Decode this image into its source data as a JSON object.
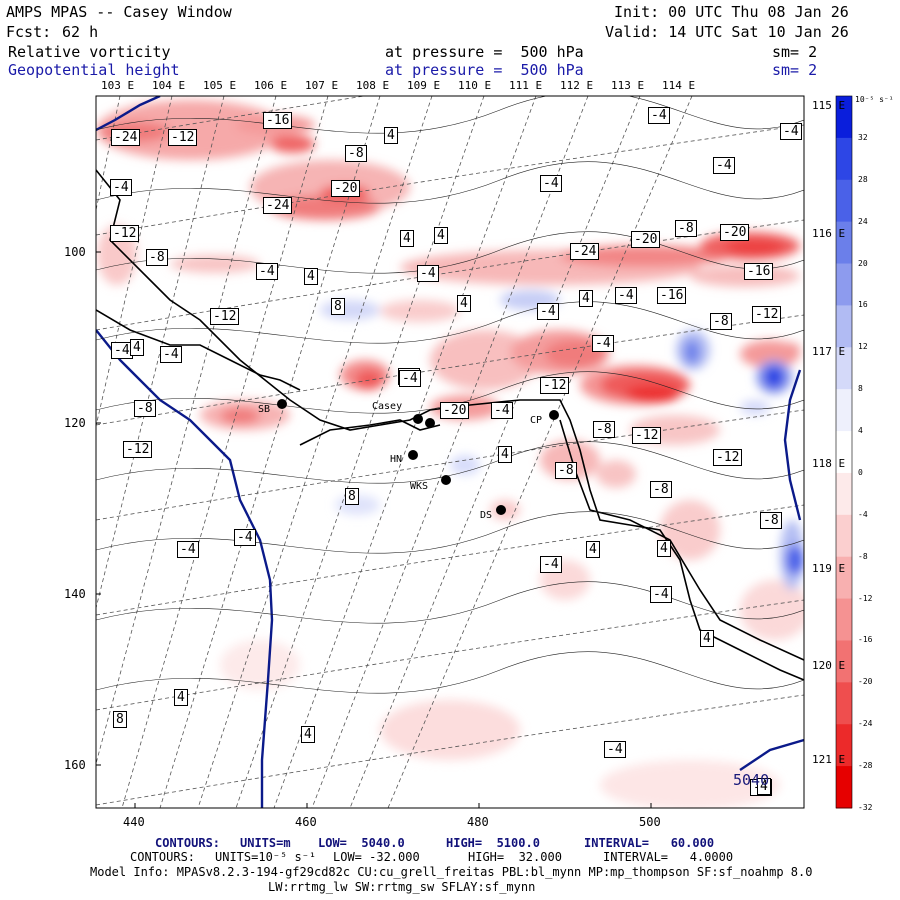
{
  "header": {
    "model_title": "AMPS MPAS -- Casey Window",
    "init": "Init: 00 UTC Thu 08 Jan 26",
    "fcst_label": "Fcst:",
    "fcst_value": "62 h",
    "valid": "Valid: 14 UTC Sat 10 Jan 26",
    "field1_name": "Relative vorticity",
    "field1_level": "at pressure =  500 hPa",
    "field1_sm": "sm= 2",
    "field2_name": "Geopotential height",
    "field2_level": "at pressure =  500 hPa",
    "field2_sm": "sm= 2"
  },
  "longitudes_top": [
    "103 E",
    "104 E",
    "105 E",
    "106 E",
    "107 E",
    "108 E",
    "109 E",
    "110 E",
    "111 E",
    "112 E",
    "113 E",
    "114 E"
  ],
  "longitudes_right": [
    "115 E",
    "116 E",
    "117 E",
    "118 E",
    "119 E",
    "120 E",
    "121 E"
  ],
  "y_ticks": [
    "100",
    "120",
    "140",
    "160"
  ],
  "x_ticks": [
    "440",
    "460",
    "480",
    "500"
  ],
  "colorbar": {
    "units": "10⁻⁵ s⁻¹",
    "ticks": [
      "32",
      "28",
      "24",
      "20",
      "16",
      "12",
      "8",
      "4",
      "0",
      "-4",
      "-8",
      "-12",
      "-16",
      "-20",
      "-24",
      "-28",
      "-32"
    ],
    "colors": [
      "#0a1edc",
      "#2d46e6",
      "#4a61e8",
      "#6b7fea",
      "#8d9bee",
      "#b1bbf3",
      "#d4d9f9",
      "#eef0fc",
      "#ffffff",
      "#fdeaea",
      "#fbcfcf",
      "#f8b0b0",
      "#f59292",
      "#f27272",
      "#ef4e4e",
      "#ec2a2a",
      "#e60000"
    ]
  },
  "stations": [
    "SB",
    "Casey",
    "HN",
    "WKS",
    "DS",
    "CP"
  ],
  "contour_labels": [
    "-24",
    "-12",
    "-16",
    "4",
    "-8",
    "-20",
    "-24",
    "-4",
    "-12",
    "-8",
    "-4",
    "4",
    "-4",
    "8",
    "-12",
    "-4",
    "4",
    "-4",
    "-8",
    "-12",
    "-4",
    "-4",
    "4",
    "-12",
    "-8",
    "-20",
    "-4",
    "-8",
    "-12",
    "4",
    "-12",
    "-8",
    "-8",
    "4",
    "-4",
    "8",
    "-4",
    "-4",
    "4",
    "8",
    "4",
    "-4",
    "-8",
    "-4",
    "4",
    "4",
    "-4",
    "-24",
    "-20",
    "-8",
    "-20",
    "-16",
    "-16",
    "-4",
    "-8",
    "4",
    "-4",
    "-12",
    "-4",
    "-4",
    "-4",
    "-4",
    "4",
    "4",
    "4"
  ],
  "height_label": "5040",
  "footer": {
    "line1_contours": "CONTOURS:",
    "line1_units": "UNITS=m",
    "line1_low": "LOW=  5040.0",
    "line1_high": "HIGH=  5100.0",
    "line1_interval": "INTERVAL=   60.000",
    "line2_contours": "CONTOURS:",
    "line2_units": "UNITS=10⁻⁵ s⁻¹",
    "line2_low": "LOW= -32.000",
    "line2_high": "HIGH=  32.000",
    "line2_interval": "INTERVAL=   4.0000",
    "model_info": "Model Info: MPASv8.2.3-194-gf29cd82c CU:cu_grell_freitas PBL:bl_mynn MP:mp_thompson SF:sf_noahmp 8.0",
    "model_info2": "LW:rrtmg_lw SW:rrtmg_sw SFLAY:sf_mynn"
  }
}
